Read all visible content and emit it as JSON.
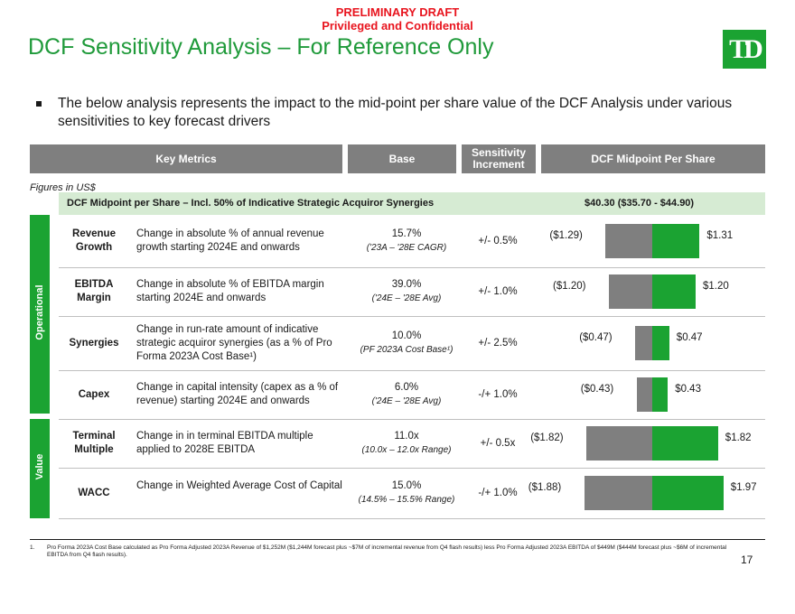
{
  "header": {
    "draft_label": "PRELIMINARY DRAFT",
    "confidential_label": "Privileged and Confidential",
    "title": "DCF Sensitivity Analysis – For Reference Only",
    "logo_text": "TD",
    "brand_color": "#1ba332"
  },
  "intro": {
    "bullet": "The below analysis represents the impact to the mid-point per share value of the DCF Analysis under various sensitivities to key forecast drivers"
  },
  "table": {
    "headers": {
      "key_metrics": "Key Metrics",
      "base": "Base",
      "increment": "Sensitivity Increment",
      "midpoint": "DCF Midpoint Per Share"
    },
    "figures_note": "Figures in US$",
    "summary": {
      "label": "DCF Midpoint per Share – Incl. 50% of Indicative Strategic Acquiror Synergies",
      "value": "$40.30 ($35.70 - $44.90)"
    },
    "groups": {
      "operational": "Operational",
      "value": "Value"
    },
    "rows": [
      {
        "metric": "Revenue Growth",
        "description": "Change in absolute % of annual revenue growth starting 2024E and onwards",
        "base": "15.7%",
        "base_note": "('23A – '28E CAGR)",
        "increment": "+/- 0.5%",
        "negative": "($1.29)",
        "positive": "$1.31",
        "negative_value": -1.29,
        "positive_value": 1.31
      },
      {
        "metric": "EBITDA Margin",
        "description": "Change in absolute % of EBITDA margin starting 2024E and onwards",
        "base": "39.0%",
        "base_note": "('24E – '28E Avg)",
        "increment": "+/- 1.0%",
        "negative": "($1.20)",
        "positive": "$1.20",
        "negative_value": -1.2,
        "positive_value": 1.2
      },
      {
        "metric": "Synergies",
        "description": "Change in run-rate amount of indicative strategic acquiror synergies (as a % of Pro Forma 2023A Cost Base¹)",
        "base": "10.0%",
        "base_note": "(PF 2023A Cost Base¹)",
        "increment": "+/- 2.5%",
        "negative": "($0.47)",
        "positive": "$0.47",
        "negative_value": -0.47,
        "positive_value": 0.47
      },
      {
        "metric": "Capex",
        "description": "Change in capital intensity (capex as a % of revenue) starting 2024E and onwards",
        "base": "6.0%",
        "base_note": "('24E – '28E Avg)",
        "increment": "-/+ 1.0%",
        "negative": "($0.43)",
        "positive": "$0.43",
        "negative_value": -0.43,
        "positive_value": 0.43
      },
      {
        "metric": "Terminal Multiple",
        "description": "Change in in terminal EBITDA multiple applied to 2028E EBITDA",
        "base": "11.0x",
        "base_note": "(10.0x – 12.0x Range)",
        "increment": "+/- 0.5x",
        "negative": "($1.82)",
        "positive": "$1.82",
        "negative_value": -1.82,
        "positive_value": 1.82
      },
      {
        "metric": "WACC",
        "description": "Change in Weighted Average Cost of Capital",
        "base": "15.0%",
        "base_note": "(14.5% – 15.5% Range)",
        "increment": "-/+ 1.0%",
        "negative": "($1.88)",
        "positive": "$1.97",
        "negative_value": -1.88,
        "positive_value": 1.97
      }
    ]
  },
  "footer": {
    "footnote_number": "1.",
    "footnote": "Pro Forma 2023A Cost Base calculated as Pro Forma Adjusted 2023A Revenue of $1,252M ($1,244M forecast plus ~$7M of incremental revenue from Q4 flash results) less Pro Forma Adjusted 2023A EBITDA of $449M ($444M forecast plus ~$6M of incremental EBITDA from Q4 flash results).",
    "page_number": "17"
  }
}
